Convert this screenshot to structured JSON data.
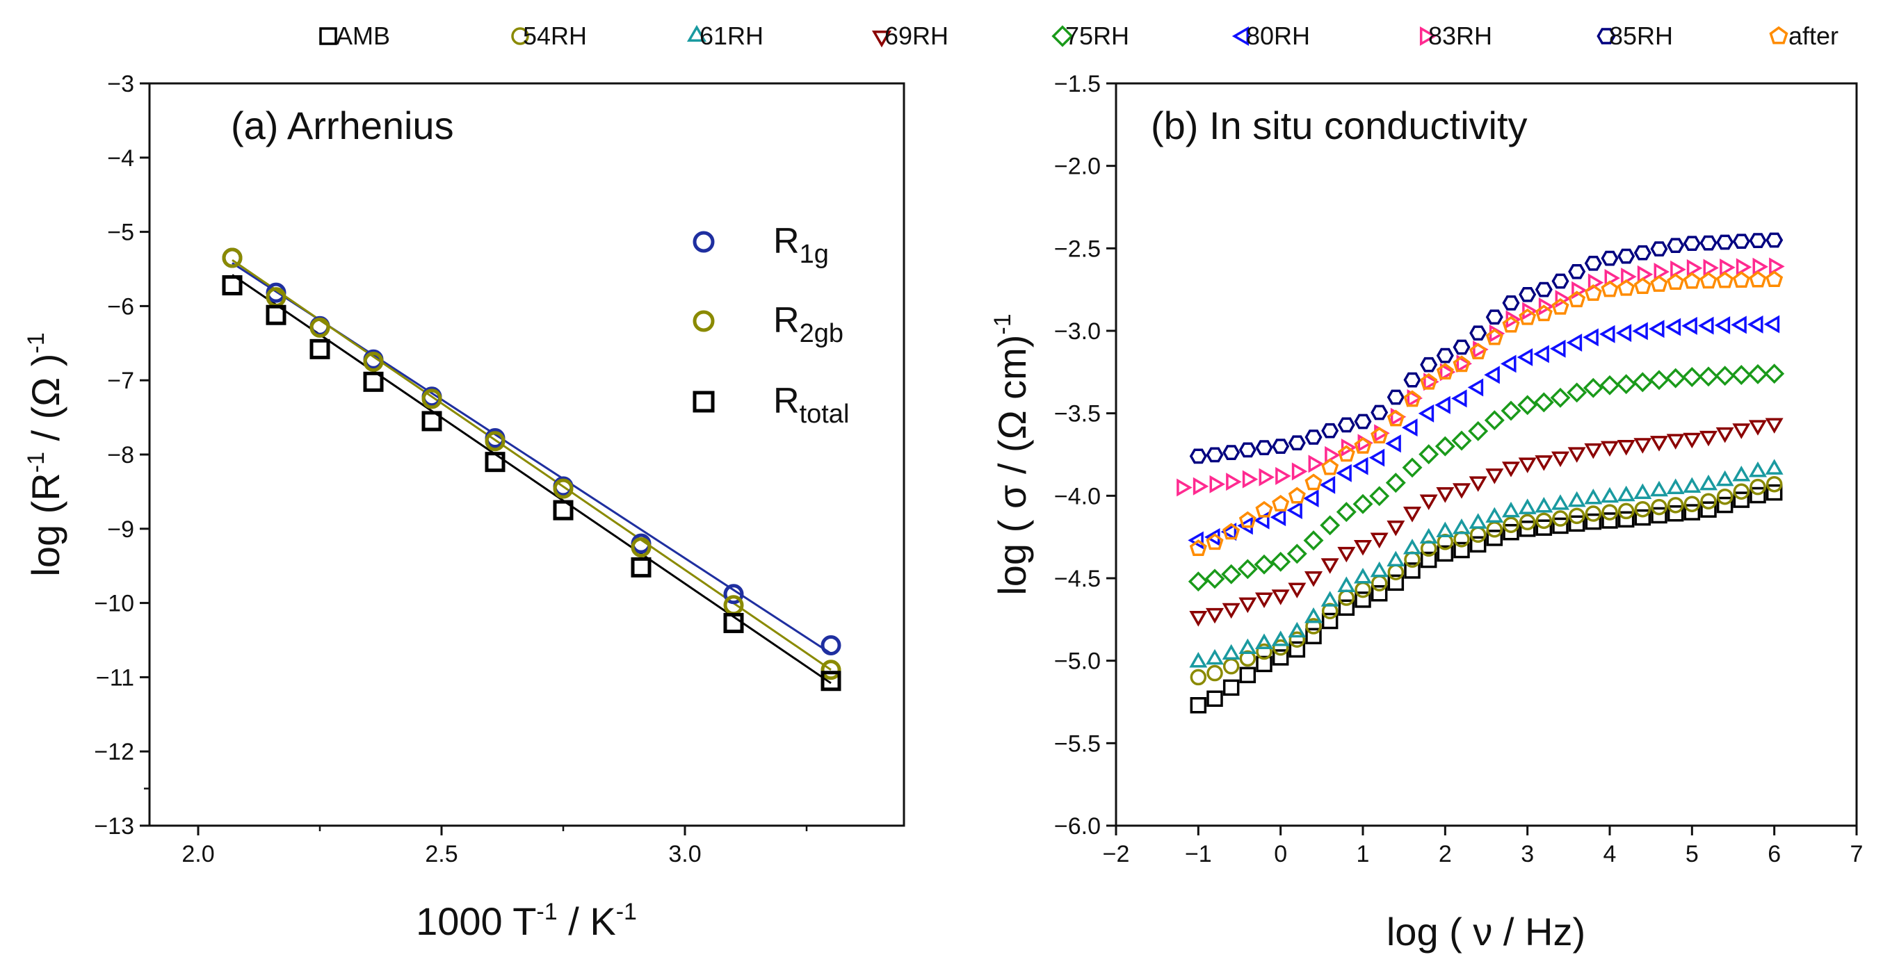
{
  "legend": {
    "entries": [
      {
        "label": "AMB",
        "color": "#000000",
        "marker": "square"
      },
      {
        "label": "54RH",
        "color": "#8a8a00",
        "marker": "circle"
      },
      {
        "label": "61RH",
        "color": "#1a9aa0",
        "marker": "triangle-up"
      },
      {
        "label": "69RH",
        "color": "#8b0000",
        "marker": "triangle-down"
      },
      {
        "label": "75RH",
        "color": "#1a9a1a",
        "marker": "diamond"
      },
      {
        "label": "80RH",
        "color": "#1010ff",
        "marker": "triangle-left"
      },
      {
        "label": "83RH",
        "color": "#ff2a90",
        "marker": "triangle-right"
      },
      {
        "label": "85RH",
        "color": "#000080",
        "marker": "hexagon"
      },
      {
        "label": "after",
        "color": "#ff8c00",
        "marker": "pentagon"
      }
    ]
  },
  "chart_data": [
    {
      "type": "scatter",
      "panel": "a",
      "title": "(a) Arrhenius",
      "xlabel": "1000 T",
      "xlabel_sup": "-1",
      "xlabel_tail": " / K",
      "xlabel_tail_sup": "-1",
      "ylabel": "log (R",
      "ylabel_sup": "-1",
      "ylabel_tail": " / (Ω )",
      "ylabel_tail_sup": "-1",
      "xlim": [
        1.9,
        3.45
      ],
      "ylim": [
        -13,
        -3
      ],
      "xticks": [
        2.0,
        2.5,
        3.0
      ],
      "xtick_labels": [
        "2.0",
        "2.5",
        "3.0"
      ],
      "yticks": [
        -3,
        -4,
        -5,
        -6,
        -7,
        -8,
        -9,
        -10,
        -11,
        -12,
        -13
      ],
      "ytick_labels": [
        "−3",
        "−4",
        "−5",
        "−6",
        "−7",
        "−8",
        "−9",
        "−10",
        "−11",
        "−12",
        "−13"
      ],
      "legend": [
        {
          "label": "R",
          "sub": "1g",
          "series": 0
        },
        {
          "label": "R",
          "sub": "2gb",
          "series": 1
        },
        {
          "label": "R",
          "sub": "total",
          "series": 2
        }
      ],
      "series": [
        {
          "name": "R1g",
          "color": "#1f2fa0",
          "marker": "circle",
          "x": [
            2.07,
            2.16,
            2.25,
            2.36,
            2.48,
            2.61,
            2.75,
            2.91,
            3.1,
            3.3
          ],
          "y": [
            -5.35,
            -5.82,
            -6.27,
            -6.72,
            -7.22,
            -7.78,
            -8.43,
            -9.2,
            -9.88,
            -10.57
          ],
          "fit": [
            [
              2.07,
              -5.42
            ],
            [
              3.3,
              -10.68
            ]
          ]
        },
        {
          "name": "R2gb",
          "color": "#8a8a00",
          "marker": "circle",
          "x": [
            2.07,
            2.16,
            2.25,
            2.36,
            2.48,
            2.61,
            2.75,
            2.91,
            3.1,
            3.3
          ],
          "y": [
            -5.35,
            -5.88,
            -6.29,
            -6.75,
            -7.25,
            -7.82,
            -8.46,
            -9.25,
            -10.03,
            -10.9
          ],
          "fit": [
            [
              2.07,
              -5.38
            ],
            [
              3.3,
              -10.9
            ]
          ]
        },
        {
          "name": "Rtotal",
          "color": "#000000",
          "marker": "square",
          "x": [
            2.07,
            2.16,
            2.25,
            2.36,
            2.48,
            2.61,
            2.75,
            2.91,
            3.1,
            3.3
          ],
          "y": [
            -5.72,
            -6.12,
            -6.58,
            -7.02,
            -7.55,
            -8.1,
            -8.75,
            -9.52,
            -10.27,
            -11.05
          ],
          "fit": [
            [
              2.07,
              -5.58
            ],
            [
              3.3,
              -11.08
            ]
          ]
        }
      ]
    },
    {
      "type": "scatter",
      "panel": "b",
      "title": "(b) In situ conductivity",
      "xlabel": "log ( ν / Hz)",
      "ylabel": "log ( σ / (Ω cm)",
      "ylabel_sup": "-1",
      "xlim": [
        -2,
        7
      ],
      "ylim": [
        -6.0,
        -1.5
      ],
      "xticks": [
        -2,
        -1,
        0,
        1,
        2,
        3,
        4,
        5,
        6,
        7
      ],
      "xtick_labels": [
        "−2",
        "−1",
        "0",
        "1",
        "2",
        "3",
        "4",
        "5",
        "6",
        "7"
      ],
      "yticks": [
        -1.5,
        -2.0,
        -2.5,
        -3.0,
        -3.5,
        -4.0,
        -4.5,
        -5.0,
        -5.5,
        -6.0
      ],
      "ytick_labels": [
        "−1.5",
        "−2.0",
        "−2.5",
        "−3.0",
        "−3.5",
        "−4.0",
        "−4.5",
        "−5.0",
        "−5.5",
        "−6.0"
      ],
      "series": [
        {
          "name": "AMB",
          "x_start": -1.0,
          "x_end": 6.0,
          "count": 36,
          "knots_x": [
            -1.0,
            0.0,
            1.0,
            2.0,
            3.0,
            4.0,
            5.0,
            6.0
          ],
          "knots_y": [
            -5.27,
            -4.98,
            -4.63,
            -4.35,
            -4.2,
            -4.15,
            -4.1,
            -3.98
          ]
        },
        {
          "name": "54RH",
          "x_start": -1.0,
          "x_end": 6.0,
          "count": 36,
          "knots_x": [
            -1.0,
            0.0,
            1.0,
            2.0,
            3.0,
            4.0,
            5.0,
            6.0
          ],
          "knots_y": [
            -5.1,
            -4.92,
            -4.57,
            -4.28,
            -4.16,
            -4.1,
            -4.05,
            -3.93
          ]
        },
        {
          "name": "61RH",
          "x_start": -1.0,
          "x_end": 6.0,
          "count": 36,
          "knots_x": [
            -1.0,
            0.0,
            1.0,
            2.0,
            3.0,
            4.0,
            5.0,
            6.0
          ],
          "knots_y": [
            -5.01,
            -4.88,
            -4.5,
            -4.22,
            -4.08,
            -4.01,
            -3.95,
            -3.84
          ]
        },
        {
          "name": "69RH",
          "x_start": -1.0,
          "x_end": 6.0,
          "count": 36,
          "knots_x": [
            -1.0,
            0.0,
            1.0,
            2.0,
            3.0,
            4.0,
            5.0,
            6.0
          ],
          "knots_y": [
            -4.73,
            -4.6,
            -4.3,
            -3.98,
            -3.8,
            -3.7,
            -3.65,
            -3.56
          ]
        },
        {
          "name": "75RH",
          "x_start": -1.0,
          "x_end": 6.0,
          "count": 36,
          "knots_x": [
            -1.0,
            0.0,
            1.0,
            2.0,
            3.0,
            4.0,
            5.0,
            6.0
          ],
          "knots_y": [
            -4.52,
            -4.4,
            -4.05,
            -3.7,
            -3.45,
            -3.33,
            -3.28,
            -3.26
          ]
        },
        {
          "name": "80RH",
          "x_start": -1.0,
          "x_end": 6.0,
          "count": 36,
          "knots_x": [
            -1.0,
            0.0,
            1.0,
            2.0,
            3.0,
            4.0,
            5.0,
            6.0
          ],
          "knots_y": [
            -4.27,
            -4.13,
            -3.82,
            -3.45,
            -3.16,
            -3.02,
            -2.97,
            -2.96
          ]
        },
        {
          "name": "83RH",
          "x_start": -1.2,
          "x_end": 6.0,
          "count": 37,
          "knots_x": [
            -1.2,
            0.0,
            1.0,
            2.0,
            3.0,
            4.0,
            5.0,
            6.0
          ],
          "knots_y": [
            -3.95,
            -3.88,
            -3.68,
            -3.25,
            -2.88,
            -2.68,
            -2.62,
            -2.61
          ]
        },
        {
          "name": "85RH",
          "x_start": -1.0,
          "x_end": 6.0,
          "count": 36,
          "knots_x": [
            -1.0,
            0.0,
            1.0,
            2.0,
            3.0,
            4.0,
            5.0,
            6.0
          ],
          "knots_y": [
            -3.76,
            -3.7,
            -3.55,
            -3.15,
            -2.78,
            -2.56,
            -2.47,
            -2.45
          ]
        },
        {
          "name": "after",
          "x_start": -1.0,
          "x_end": 6.0,
          "count": 36,
          "knots_x": [
            -1.0,
            0.0,
            1.0,
            2.0,
            3.0,
            4.0,
            5.0,
            6.0
          ],
          "knots_y": [
            -4.32,
            -4.05,
            -3.7,
            -3.25,
            -2.92,
            -2.75,
            -2.7,
            -2.69
          ]
        }
      ]
    }
  ]
}
